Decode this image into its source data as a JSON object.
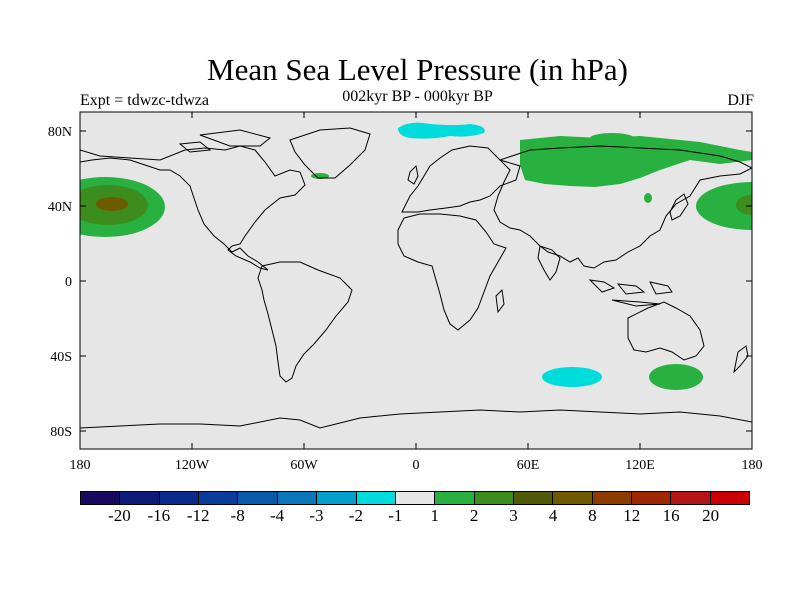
{
  "title": "Mean Sea Level Pressure (in hPa)",
  "subtitle": "002kyr BP - 000kyr BP",
  "experiment": "Expt = tdwzc-tdwza",
  "season": "DJF",
  "axes": {
    "lat_labels": [
      "80N",
      "40N",
      "0",
      "40S",
      "80S"
    ],
    "lon_labels": [
      "180",
      "120W",
      "60W",
      "0",
      "60E",
      "120E",
      "180"
    ]
  },
  "colorbar": {
    "colors": [
      "#1a0a5e",
      "#0d1a7a",
      "#0a2a8c",
      "#0a3c9c",
      "#0a5aaa",
      "#0a78b8",
      "#00a0cc",
      "#00dcdc",
      "#e6e6e6",
      "#28b040",
      "#3c8c1e",
      "#505a0a",
      "#6e5a00",
      "#8c3c00",
      "#a02800",
      "#b41414",
      "#cc0000"
    ],
    "labels": [
      "-20",
      "-16",
      "-12",
      "-8",
      "-4",
      "-3",
      "-2",
      "-1",
      "1",
      "2",
      "3",
      "4",
      "8",
      "12",
      "16",
      "20"
    ]
  },
  "colors": {
    "map_background": "#e6e6e6",
    "green_light": "#28b040",
    "green_mid": "#3c8c1e",
    "olive": "#6e5a00",
    "cyan": "#00dcdc"
  }
}
